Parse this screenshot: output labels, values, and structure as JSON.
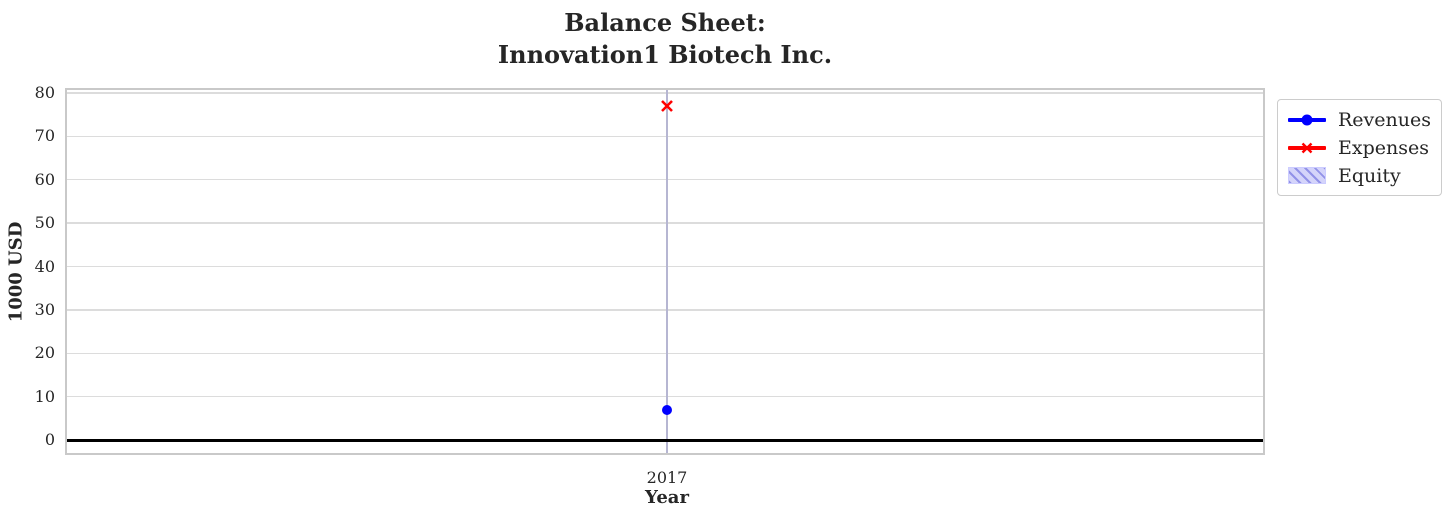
{
  "title": {
    "line1": "Balance Sheet:",
    "line2": "Innovation1 Biotech Inc."
  },
  "chart_data": {
    "type": "line",
    "title": "Balance Sheet:\nInnovation1 Biotech Inc.",
    "x": [
      "2017"
    ],
    "series": [
      {
        "name": "Revenues",
        "type": "line",
        "marker": "circle",
        "color": "#0000ff",
        "values": [
          6.9
        ]
      },
      {
        "name": "Expenses",
        "type": "line",
        "marker": "x",
        "color": "#ff0000",
        "values": [
          77
        ]
      },
      {
        "name": "Equity",
        "type": "bar",
        "hatch": "///",
        "color": "#ccccff",
        "hatch_color": "#9292e8",
        "values": [
          null
        ]
      }
    ],
    "xlabel": "Year",
    "ylabel": "1000 USD",
    "yticks": [
      0,
      10,
      20,
      30,
      40,
      50,
      60,
      70,
      80
    ],
    "ylim": [
      -3.5,
      81
    ],
    "grid": true,
    "zero_line": true,
    "legend_position": "outside-right-top"
  },
  "colors": {
    "revenues": "#0000ff",
    "expenses": "#ff0000",
    "equity_fill": "#ccccff",
    "equity_hatch": "#9292e8",
    "grid": "#dcdcdc",
    "vertical_band": "#b6b6d2",
    "zero_line": "#000000",
    "spine": "#c9c9c9",
    "text": "#262626"
  }
}
